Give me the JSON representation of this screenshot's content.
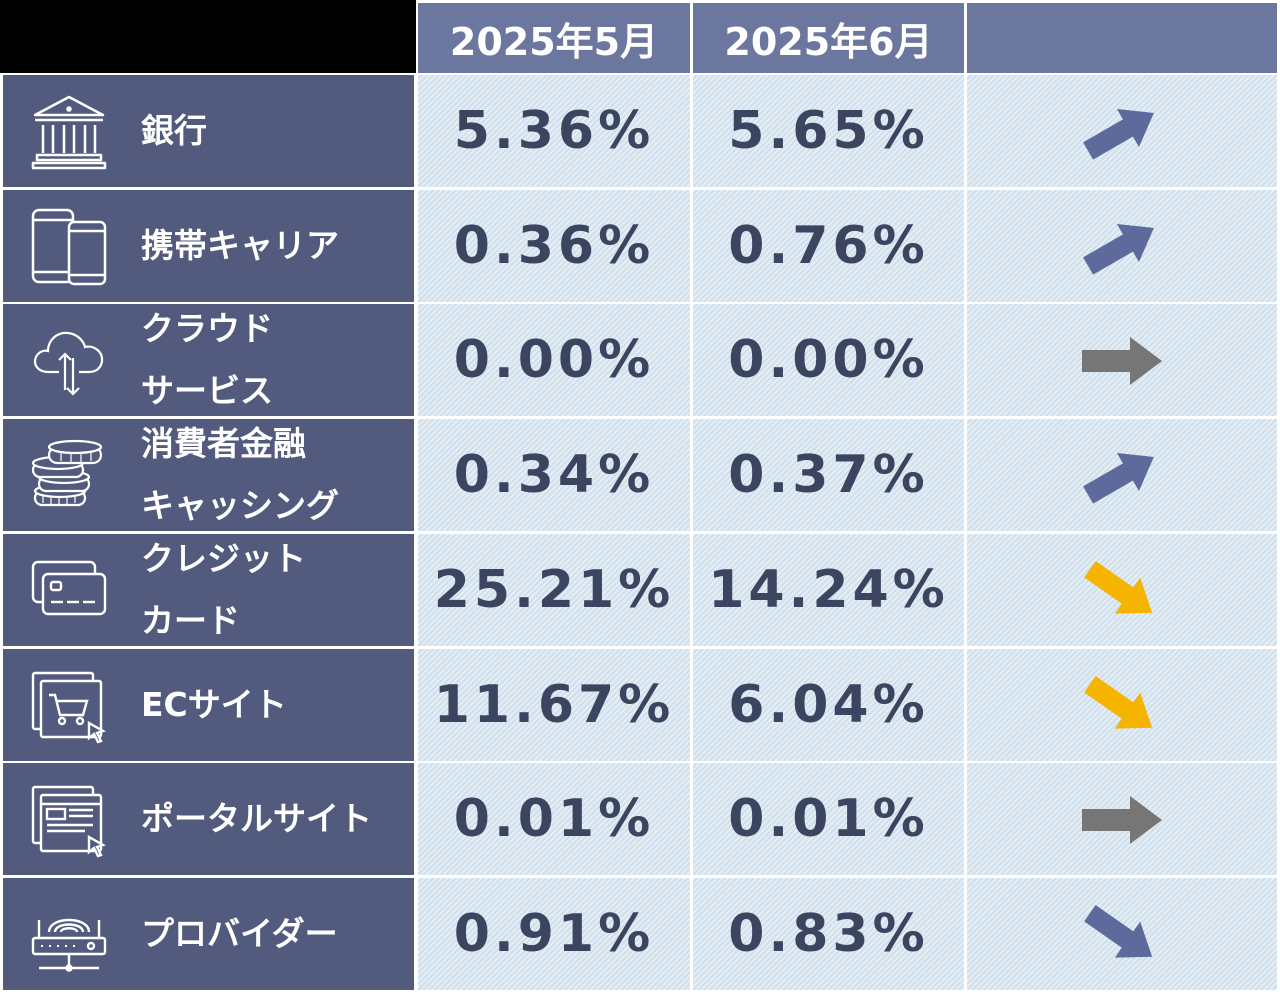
{
  "chart_data": {
    "type": "table",
    "columns": [
      "2025年5月",
      "2025年6月",
      ""
    ],
    "rows": [
      {
        "label_lines": [
          "銀行"
        ],
        "icon": "bank-icon",
        "may": "5.36%",
        "jun": "5.65%",
        "trend": "up",
        "trend_color": "#5e6a9c"
      },
      {
        "label_lines": [
          "携帯キャリア"
        ],
        "icon": "smartphone-icon",
        "may": "0.36%",
        "jun": "0.76%",
        "trend": "up",
        "trend_color": "#5e6a9c"
      },
      {
        "label_lines": [
          "クラウド",
          "サービス"
        ],
        "icon": "cloud-icon",
        "may": "0.00%",
        "jun": "0.00%",
        "trend": "flat",
        "trend_color": "#767676"
      },
      {
        "label_lines": [
          "消費者金融",
          "キャッシング"
        ],
        "icon": "coins-icon",
        "may": "0.34%",
        "jun": "0.37%",
        "trend": "up",
        "trend_color": "#5e6a9c"
      },
      {
        "label_lines": [
          "クレジット",
          "カード"
        ],
        "icon": "credit-card-icon",
        "may": "25.21%",
        "jun": "14.24%",
        "trend": "down",
        "trend_color": "#f4b400"
      },
      {
        "label_lines": [
          "ECサイト"
        ],
        "icon": "shopping-cart-icon",
        "may": "11.67%",
        "jun": "6.04%",
        "trend": "down",
        "trend_color": "#f4b400"
      },
      {
        "label_lines": [
          "ポータルサイト"
        ],
        "icon": "portal-window-icon",
        "may": "0.01%",
        "jun": "0.01%",
        "trend": "flat",
        "trend_color": "#767676"
      },
      {
        "label_lines": [
          "プロバイダー"
        ],
        "icon": "router-icon",
        "may": "0.91%",
        "jun": "0.83%",
        "trend": "down",
        "trend_color": "#5e6a9c"
      }
    ]
  }
}
